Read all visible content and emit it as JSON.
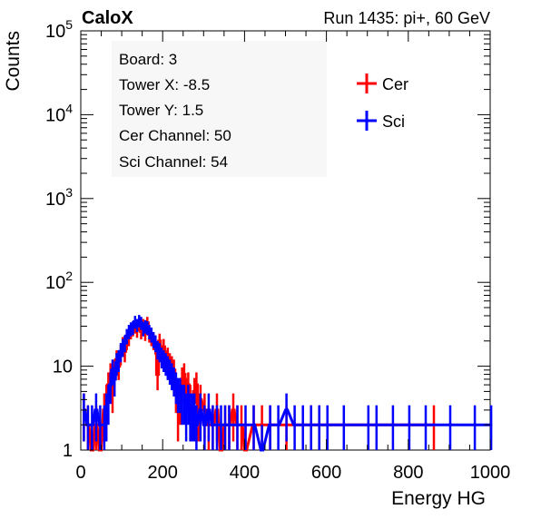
{
  "header": {
    "experiment": "CaloX",
    "run_info": "Run 1435: pi+, 60 GeV"
  },
  "stats_box": {
    "lines": [
      "Board: 3",
      "Tower X: -8.5",
      "Tower Y: 1.5",
      "Cer Channel: 50",
      "Sci Channel: 54"
    ]
  },
  "chart_data": {
    "type": "line",
    "title": "",
    "xlabel": "Energy HG",
    "ylabel": "Counts",
    "xlim": [
      0,
      1000
    ],
    "ylim": [
      1,
      100000
    ],
    "y_scale": "log",
    "grid": false,
    "legend_position": "top-right",
    "x_ticks": [
      0,
      200,
      400,
      600,
      800,
      1000
    ],
    "x_tick_labels": [
      "0",
      "200",
      "400",
      "600",
      "800",
      "1000"
    ],
    "y_ticks": [
      1,
      10,
      100,
      1000,
      10000,
      100000
    ],
    "series": [
      {
        "name": "Cer",
        "color": "#ff0000",
        "points": [
          [
            5,
            3
          ],
          [
            15,
            2
          ],
          [
            25,
            1
          ],
          [
            35,
            2
          ],
          [
            45,
            1
          ],
          [
            55,
            3
          ],
          [
            60,
            4
          ],
          [
            65,
            6
          ],
          [
            70,
            8
          ],
          [
            75,
            5
          ],
          [
            80,
            9
          ],
          [
            85,
            12
          ],
          [
            90,
            10
          ],
          [
            95,
            14
          ],
          [
            100,
            18
          ],
          [
            105,
            15
          ],
          [
            110,
            20
          ],
          [
            115,
            22
          ],
          [
            120,
            26
          ],
          [
            125,
            28
          ],
          [
            130,
            30
          ],
          [
            135,
            27
          ],
          [
            140,
            32
          ],
          [
            145,
            26
          ],
          [
            150,
            31
          ],
          [
            155,
            25
          ],
          [
            160,
            33
          ],
          [
            165,
            24
          ],
          [
            170,
            22
          ],
          [
            175,
            20
          ],
          [
            180,
            18
          ],
          [
            185,
            8
          ],
          [
            190,
            20
          ],
          [
            195,
            14
          ],
          [
            200,
            17
          ],
          [
            205,
            12
          ],
          [
            210,
            13
          ],
          [
            215,
            11
          ],
          [
            220,
            10
          ],
          [
            225,
            9
          ],
          [
            230,
            5
          ],
          [
            235,
            3
          ],
          [
            240,
            4
          ],
          [
            245,
            7
          ],
          [
            250,
            8
          ],
          [
            255,
            5
          ],
          [
            260,
            6
          ],
          [
            265,
            4
          ],
          [
            270,
            3
          ],
          [
            275,
            5
          ],
          [
            280,
            6
          ],
          [
            285,
            3
          ],
          [
            290,
            4
          ],
          [
            300,
            3
          ],
          [
            310,
            2
          ],
          [
            320,
            2
          ],
          [
            330,
            3
          ],
          [
            340,
            1
          ],
          [
            350,
            2
          ],
          [
            360,
            2
          ],
          [
            370,
            3
          ],
          [
            380,
            2
          ],
          [
            390,
            2
          ],
          [
            400,
            1
          ],
          [
            420,
            2
          ],
          [
            440,
            2
          ],
          [
            460,
            2
          ],
          [
            500,
            2
          ],
          [
            560,
            2
          ],
          [
            580,
            2
          ],
          [
            860,
            2
          ]
        ]
      },
      {
        "name": "Sci",
        "color": "#0000ff",
        "points": [
          [
            5,
            3
          ],
          [
            15,
            2
          ],
          [
            25,
            2
          ],
          [
            35,
            3
          ],
          [
            45,
            2
          ],
          [
            55,
            2
          ],
          [
            60,
            3
          ],
          [
            65,
            4
          ],
          [
            70,
            6
          ],
          [
            75,
            9
          ],
          [
            80,
            7
          ],
          [
            85,
            11
          ],
          [
            90,
            12
          ],
          [
            95,
            15
          ],
          [
            100,
            17
          ],
          [
            105,
            19
          ],
          [
            110,
            23
          ],
          [
            115,
            26
          ],
          [
            120,
            28
          ],
          [
            125,
            29
          ],
          [
            130,
            34
          ],
          [
            135,
            31
          ],
          [
            140,
            35
          ],
          [
            145,
            33
          ],
          [
            150,
            28
          ],
          [
            155,
            30
          ],
          [
            160,
            29
          ],
          [
            165,
            26
          ],
          [
            170,
            24
          ],
          [
            175,
            21
          ],
          [
            180,
            19
          ],
          [
            185,
            16
          ],
          [
            190,
            15
          ],
          [
            195,
            13
          ],
          [
            200,
            12
          ],
          [
            205,
            11
          ],
          [
            210,
            10
          ],
          [
            215,
            9
          ],
          [
            220,
            8
          ],
          [
            225,
            7
          ],
          [
            230,
            6
          ],
          [
            235,
            5
          ],
          [
            240,
            5
          ],
          [
            245,
            4
          ],
          [
            250,
            4
          ],
          [
            255,
            3
          ],
          [
            260,
            4
          ],
          [
            265,
            3
          ],
          [
            270,
            3
          ],
          [
            275,
            3
          ],
          [
            280,
            2
          ],
          [
            290,
            3
          ],
          [
            300,
            2
          ],
          [
            310,
            3
          ],
          [
            320,
            2
          ],
          [
            330,
            2
          ],
          [
            340,
            2
          ],
          [
            350,
            2
          ],
          [
            360,
            2
          ],
          [
            380,
            2
          ],
          [
            400,
            2
          ],
          [
            420,
            2
          ],
          [
            440,
            1
          ],
          [
            460,
            2
          ],
          [
            480,
            2
          ],
          [
            500,
            3
          ],
          [
            520,
            2
          ],
          [
            540,
            2
          ],
          [
            560,
            2
          ],
          [
            580,
            2
          ],
          [
            600,
            2
          ],
          [
            640,
            2
          ],
          [
            700,
            2
          ],
          [
            720,
            2
          ],
          [
            760,
            2
          ],
          [
            800,
            2
          ],
          [
            840,
            2
          ],
          [
            900,
            2
          ],
          [
            960,
            2
          ],
          [
            1000,
            2
          ]
        ]
      }
    ]
  }
}
